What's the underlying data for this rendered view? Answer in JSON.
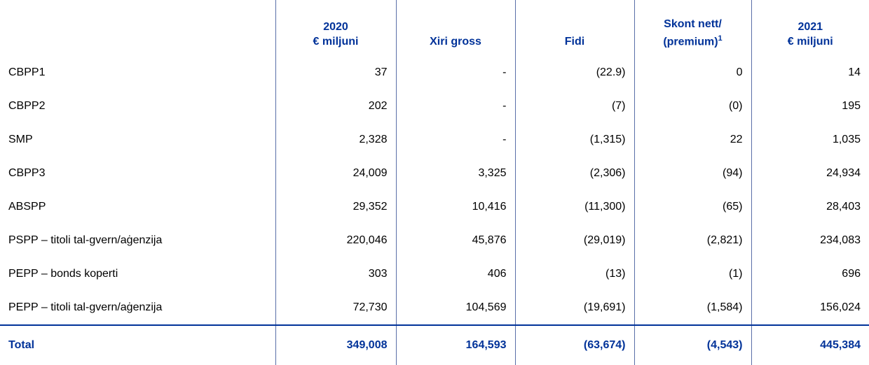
{
  "header": {
    "columns": [
      {
        "lines": [
          "2020",
          "€ miljuni"
        ]
      },
      {
        "lines": [
          "Xiri gross"
        ]
      },
      {
        "lines": [
          "Fidi"
        ]
      },
      {
        "lines": [
          "Skont nett/",
          "(premium)"
        ],
        "footnote": "1"
      },
      {
        "lines": [
          "2021",
          "€ miljuni"
        ]
      }
    ]
  },
  "table": {
    "rows": [
      [
        "CBPP1",
        "37",
        "-",
        "(22.9)",
        "0",
        "14"
      ],
      [
        "CBPP2",
        "202",
        "-",
        "(7)",
        "(0)",
        "195"
      ],
      [
        "SMP",
        "2,328",
        "-",
        "(1,315)",
        "22",
        "1,035"
      ],
      [
        "CBPP3",
        "24,009",
        "3,325",
        "(2,306)",
        "(94)",
        "24,934"
      ],
      [
        "ABSPP",
        "29,352",
        "10,416",
        "(11,300)",
        "(65)",
        "28,403"
      ],
      [
        "PSPP – titoli tal-gvern/aġenzija",
        "220,046",
        "45,876",
        "(29,019)",
        "(2,821)",
        "234,083"
      ],
      [
        "PEPP – bonds koperti",
        "303",
        "406",
        "(13)",
        "(1)",
        "696"
      ],
      [
        "PEPP – titoli tal-gvern/aġenzija",
        "72,730",
        "104,569",
        "(19,691)",
        "(1,584)",
        "156,024"
      ]
    ],
    "total": [
      "Total",
      "349,008",
      "164,593",
      "(63,674)",
      "(4,543)",
      "445,384"
    ]
  }
}
